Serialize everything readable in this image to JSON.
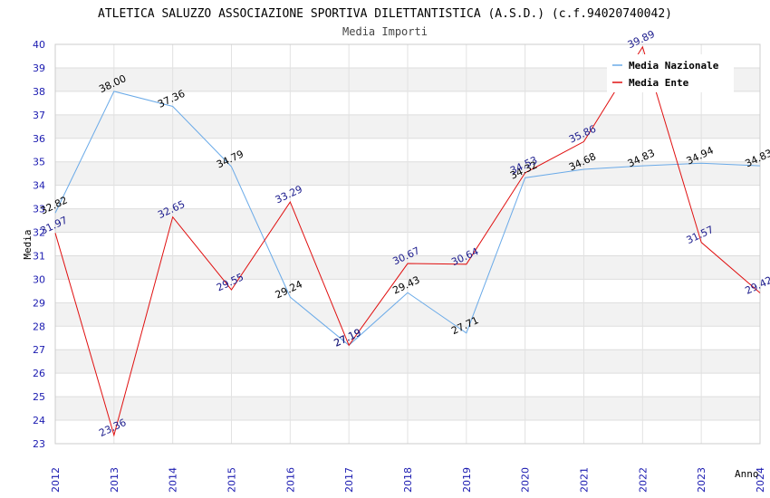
{
  "chart_data": {
    "type": "line",
    "title": "ATLETICA SALUZZO ASSOCIAZIONE SPORTIVA DILETTANTISTICA (A.S.D.) (c.f.94020740042)",
    "subtitle": "Media Importi",
    "xlabel": "Anno",
    "ylabel": "Media",
    "x": [
      "2012",
      "2013",
      "2014",
      "2015",
      "2016",
      "2017",
      "2018",
      "2019",
      "2020",
      "2021",
      "2022",
      "2023",
      "2024"
    ],
    "ylim": [
      23,
      40
    ],
    "yticks": [
      "23",
      "24",
      "25",
      "26",
      "27",
      "28",
      "29",
      "30",
      "31",
      "32",
      "33",
      "34",
      "35",
      "36",
      "37",
      "38",
      "39",
      "40"
    ],
    "series": [
      {
        "name": "Media Nazionale",
        "color": "#6aaae8",
        "values": [
          32.82,
          38.0,
          37.36,
          34.79,
          29.24,
          27.19,
          29.43,
          27.71,
          34.32,
          34.68,
          34.83,
          34.94,
          34.83
        ],
        "labels": [
          "32.82",
          "38.00",
          "37.36",
          "34.79",
          "29.24",
          "27.19",
          "29.43",
          "27.71",
          "34.32",
          "34.68",
          "34.83",
          "34.94",
          "34.83"
        ]
      },
      {
        "name": "Media Ente",
        "color": "#e01010",
        "values": [
          31.97,
          23.36,
          32.65,
          29.55,
          33.29,
          27.19,
          30.67,
          30.64,
          34.53,
          35.86,
          39.89,
          31.57,
          29.42
        ],
        "labels": [
          "31.97",
          "23.36",
          "32.65",
          "29.55",
          "33.29",
          "27.19",
          "30.67",
          "30.64",
          "34.53",
          "35.86",
          "39.89",
          "31.57",
          "29.42"
        ]
      }
    ],
    "legend_position": "top-right",
    "grid": true
  }
}
